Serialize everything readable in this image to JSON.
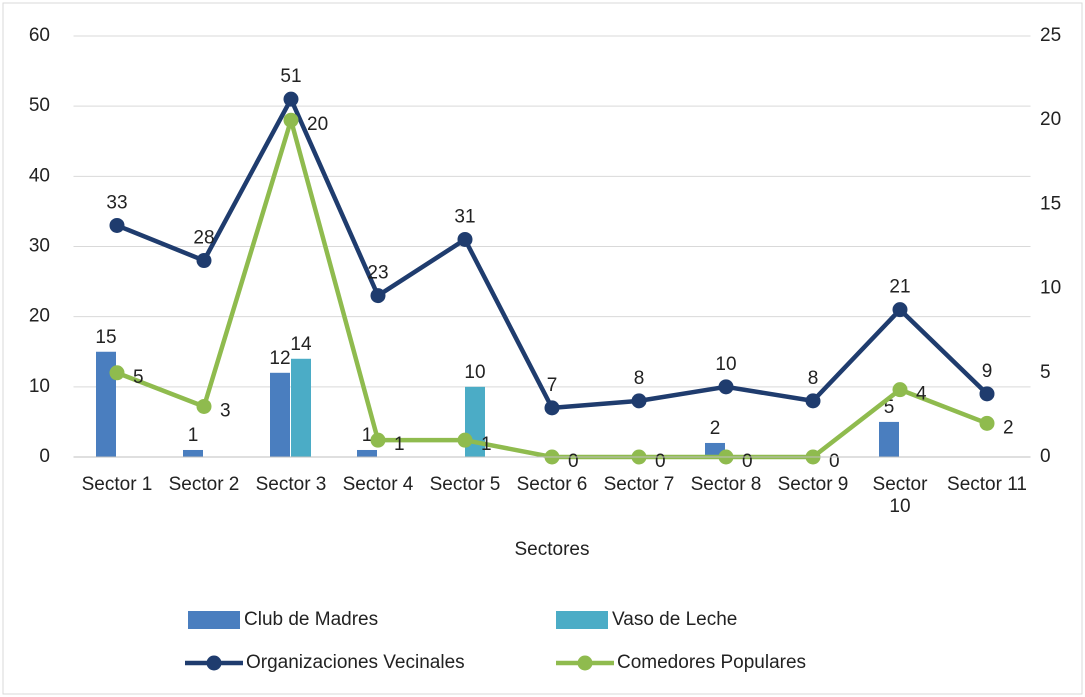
{
  "chart_data": {
    "type": "combo",
    "x_label": "Sectores",
    "categories": [
      "Sector 1",
      "Sector 2",
      "Sector 3",
      "Sector 4",
      "Sector 5",
      "Sector 6",
      "Sector 7",
      "Sector 8",
      "Sector 9",
      "Sector 10",
      "Sector 11"
    ],
    "series": [
      {
        "name": "Club de Madres",
        "kind": "bar",
        "color": "#4a7ebf",
        "values": [
          15,
          1,
          12,
          1,
          null,
          null,
          null,
          2,
          null,
          5,
          null
        ]
      },
      {
        "name": "Vaso de Leche",
        "kind": "bar",
        "color": "#4bacc6",
        "values": [
          null,
          null,
          14,
          null,
          10,
          null,
          null,
          null,
          null,
          null,
          null
        ]
      },
      {
        "name": "Organizaciones Vecinales",
        "kind": "line",
        "color": "#1f3c6e",
        "values": [
          33,
          28,
          51,
          23,
          31,
          7,
          8,
          10,
          8,
          21,
          9
        ]
      },
      {
        "name": "Comedores Populares",
        "kind": "line",
        "axis": "y2",
        "color": "#8fbb4e",
        "values": [
          5,
          3,
          20,
          1,
          1,
          0,
          0,
          0,
          0,
          4,
          2
        ]
      }
    ],
    "ylim": [
      0,
      60
    ],
    "yticks": [
      0,
      10,
      20,
      30,
      40,
      50,
      60
    ],
    "y2lim": [
      0,
      25
    ],
    "y2ticks": [
      0,
      5,
      10,
      15,
      20,
      25
    ],
    "grid": true
  }
}
